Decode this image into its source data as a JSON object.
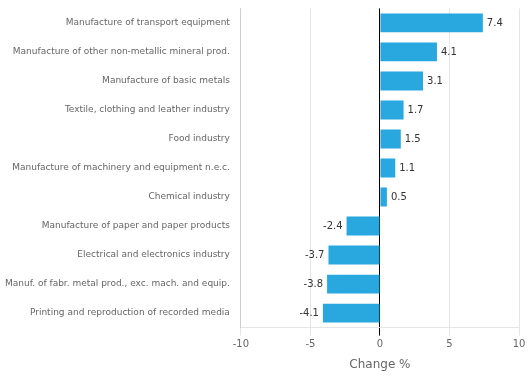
{
  "chart_data": {
    "type": "bar",
    "orientation": "horizontal",
    "categories": [
      "Printing and reproduction of recorded media",
      "Manuf. of fabr. metal prod., exc. mach. and equip.",
      "Electrical and electronics industry",
      "Manufacture of paper and paper products",
      "Chemical industry",
      "Manufacture of machinery and equipment n.e.c.",
      "Food industry",
      "Textile, clothing and leather industry",
      "Manufacture of basic metals",
      "Manufacture of other non-metallic mineral prod.",
      "Manufacture of transport equipment"
    ],
    "values": [
      -4.1,
      -3.8,
      -3.7,
      -2.4,
      0.5,
      1.1,
      1.5,
      1.7,
      3.1,
      4.1,
      7.4
    ],
    "color": "#29a8e0",
    "xlabel": "Change %",
    "xlim": [
      -10,
      10
    ],
    "xticks": [
      -10,
      -5,
      0,
      5,
      10
    ],
    "grid": true,
    "data_labels": true
  }
}
